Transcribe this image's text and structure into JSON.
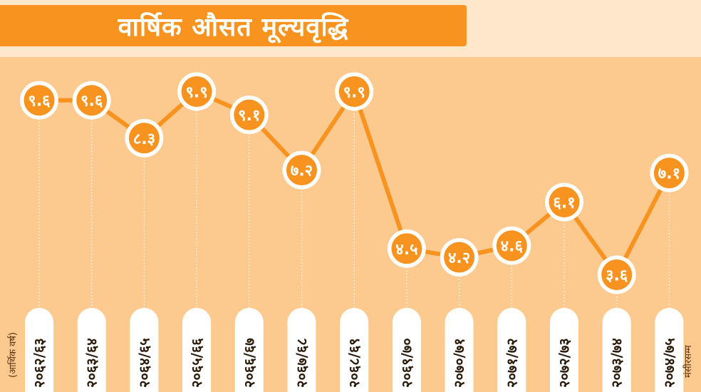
{
  "title": "वार्षिक औसत मूल्यवृद्धि",
  "axis_note_left": "(आर्थिक वर्ष)",
  "axis_note_right": "मंसीरसम्म",
  "colors": {
    "accent": "#F7931E",
    "background": "#FCC98F",
    "title_band": "#FFE7CB",
    "line": "#F7931E",
    "pill": "#FFFFFF"
  },
  "chart_data": {
    "type": "line",
    "title": "वार्षिक औसत मूल्यवृद्धि",
    "xlabel": "(आर्थिक वर्ष)",
    "ylabel": "",
    "ylim": [
      3.0,
      10.5
    ],
    "grid": false,
    "categories": [
      "२०६२/६३",
      "२०६३/६४",
      "२०६४/६५",
      "२०६५/६६",
      "२०६६/६७",
      "२०६७/६८",
      "२०६८/६९",
      "२०६९/७०",
      "२०७०/७१",
      "२०७१/७२",
      "२०७२/७३",
      "२०७३/७४",
      "२०७४/७५"
    ],
    "series": [
      {
        "values": [
          9.6,
          9.6,
          8.3,
          9.9,
          9.1,
          7.2,
          9.9,
          4.5,
          4.2,
          4.6,
          6.1,
          3.6,
          7.1
        ],
        "labels": [
          "९.६",
          "९.६",
          "८.३",
          "९.९",
          "९.१",
          "७.२",
          "९.९",
          "४.५",
          "४.२",
          "४.६",
          "६.१",
          "३.६",
          "७.१"
        ]
      }
    ]
  }
}
